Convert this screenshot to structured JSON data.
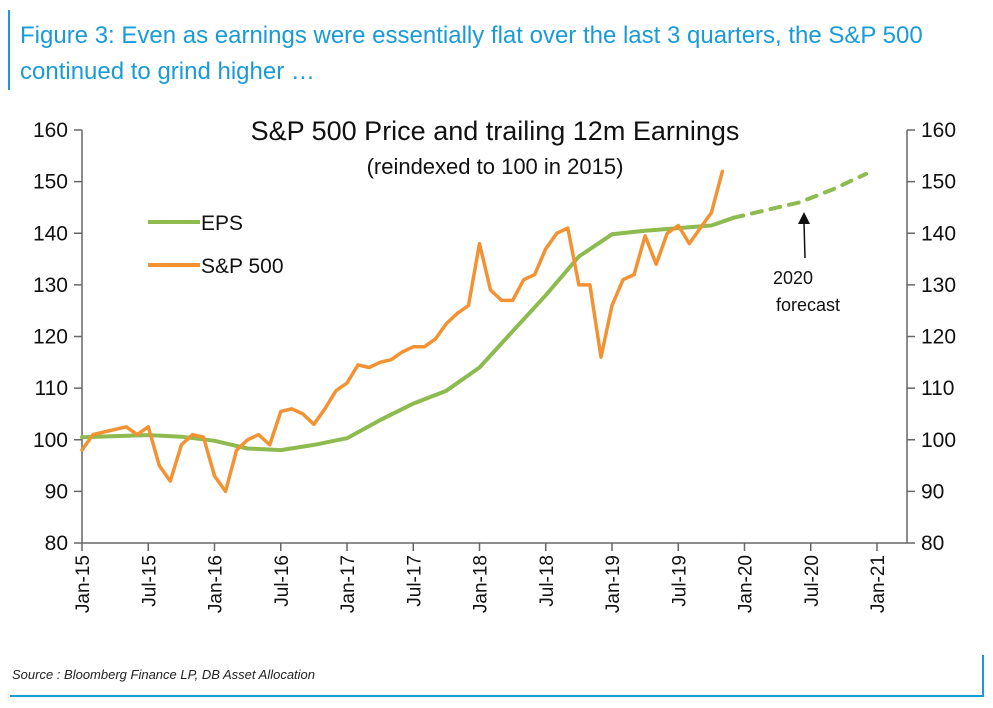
{
  "figure_title": "Figure 3: Even as earnings were essentially flat over the last 3 quarters, the S&P 500 continued to grind higher …",
  "source": "Source : Bloomberg Finance LP, DB Asset Allocation",
  "colors": {
    "accent": "#1a9bd7",
    "eps": "#8dbb4f",
    "sp500": "#f39233"
  },
  "chart_data": {
    "type": "line",
    "title": "S&P 500 Price and trailing 12m Earnings",
    "subtitle": "(reindexed to 100 in 2015)",
    "xlabel": "",
    "ylabel": "",
    "ylim": [
      80,
      160
    ],
    "yticks": [
      80,
      90,
      100,
      110,
      120,
      130,
      140,
      150,
      160
    ],
    "y_axes": "left and right (mirrored)",
    "x_range": [
      "2015-01",
      "2021-01"
    ],
    "x_tick_labels": [
      "Jan-15",
      "Jul-15",
      "Jan-16",
      "Jul-16",
      "Jan-17",
      "Jul-17",
      "Jan-18",
      "Jul-18",
      "Jan-19",
      "Jul-19",
      "Jan-20",
      "Jul-20",
      "Jan-21"
    ],
    "legend_position": "upper-left",
    "grid": false,
    "annotation": "2020\nforecast",
    "series": [
      {
        "name": "EPS",
        "color": "#8dbb4f",
        "style": "solid",
        "x": [
          "2015-01",
          "2015-04",
          "2015-07",
          "2015-10",
          "2016-01",
          "2016-04",
          "2016-07",
          "2016-10",
          "2017-01",
          "2017-04",
          "2017-07",
          "2017-10",
          "2018-01",
          "2018-04",
          "2018-07",
          "2018-10",
          "2019-01",
          "2019-04",
          "2019-07",
          "2019-10",
          "2019-12"
        ],
        "values": [
          100.5,
          100.7,
          100.9,
          100.6,
          99.8,
          98.3,
          98.0,
          99.0,
          100.3,
          103.8,
          107.0,
          109.5,
          114.0,
          121.0,
          128.0,
          135.5,
          139.8,
          140.5,
          141.0,
          141.5,
          143.0
        ]
      },
      {
        "name": "EPS",
        "legend": false,
        "color": "#8dbb4f",
        "style": "dashed",
        "x": [
          "2019-12",
          "2020-03",
          "2020-06",
          "2020-09",
          "2020-12"
        ],
        "values": [
          143.0,
          144.5,
          146.0,
          148.5,
          151.5
        ]
      },
      {
        "name": "S&P 500",
        "color": "#f39233",
        "style": "solid",
        "x": [
          "2015-01",
          "2015-02",
          "2015-03",
          "2015-04",
          "2015-05",
          "2015-06",
          "2015-07",
          "2015-08",
          "2015-09",
          "2015-10",
          "2015-11",
          "2015-12",
          "2016-01",
          "2016-02",
          "2016-03",
          "2016-04",
          "2016-05",
          "2016-06",
          "2016-07",
          "2016-08",
          "2016-09",
          "2016-10",
          "2016-11",
          "2016-12",
          "2017-01",
          "2017-02",
          "2017-03",
          "2017-04",
          "2017-05",
          "2017-06",
          "2017-07",
          "2017-08",
          "2017-09",
          "2017-10",
          "2017-11",
          "2017-12",
          "2018-01",
          "2018-02",
          "2018-03",
          "2018-04",
          "2018-05",
          "2018-06",
          "2018-07",
          "2018-08",
          "2018-09",
          "2018-10",
          "2018-11",
          "2018-12",
          "2019-01",
          "2019-02",
          "2019-03",
          "2019-04",
          "2019-05",
          "2019-06",
          "2019-07",
          "2019-08",
          "2019-09",
          "2019-10",
          "2019-11"
        ],
        "values": [
          98,
          101,
          101.5,
          102,
          102.5,
          101,
          102.5,
          95,
          92,
          99,
          101,
          100.5,
          93,
          90,
          98,
          100,
          101,
          99,
          105.5,
          106,
          105,
          103,
          106,
          109.5,
          111,
          114.5,
          114,
          115,
          115.5,
          117,
          118,
          118,
          119.5,
          122.5,
          124.5,
          126,
          138,
          129,
          127,
          127,
          131,
          132,
          137,
          140,
          141,
          130,
          130,
          116,
          126,
          131,
          132,
          139.5,
          134,
          140,
          141.5,
          138,
          141,
          144,
          152
        ]
      }
    ]
  }
}
